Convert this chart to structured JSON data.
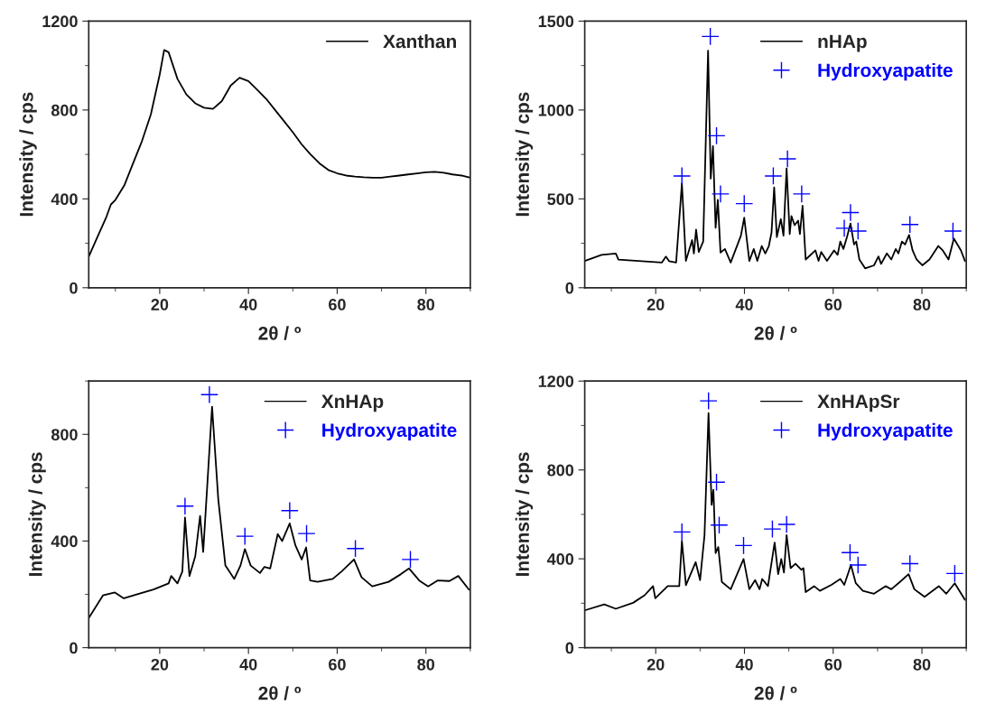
{
  "chart_data": [
    {
      "type": "line",
      "xlabel": "2θ / º",
      "ylabel": "Intensity / cps",
      "xlim": [
        4,
        90
      ],
      "xticks": [
        20,
        40,
        60,
        80
      ],
      "ylim": [
        0,
        1200
      ],
      "yticks": [
        0,
        400,
        800,
        1200
      ],
      "legend": "top right",
      "series": [
        {
          "name": "Xanthan",
          "color": "#000000",
          "x": [
            4,
            6,
            8,
            9,
            10,
            12,
            14,
            16,
            18,
            20,
            21,
            22,
            24,
            26,
            28,
            30,
            32,
            34,
            36,
            38,
            40,
            42,
            44,
            46,
            48,
            50,
            52,
            54,
            56,
            58,
            60,
            62,
            64,
            66,
            68,
            70,
            72,
            74,
            76,
            78,
            80,
            82,
            84,
            86,
            88,
            90
          ],
          "values": [
            140,
            230,
            320,
            375,
            395,
            460,
            560,
            660,
            780,
            960,
            1070,
            1060,
            940,
            870,
            830,
            810,
            805,
            840,
            910,
            945,
            930,
            890,
            850,
            800,
            750,
            700,
            645,
            600,
            560,
            530,
            515,
            505,
            500,
            497,
            495,
            495,
            500,
            505,
            510,
            515,
            520,
            522,
            518,
            510,
            505,
            495
          ]
        }
      ]
    },
    {
      "type": "line",
      "xlabel": "2θ / º",
      "ylabel": "Intensity / cps",
      "xlim": [
        4,
        90
      ],
      "xticks": [
        20,
        40,
        60,
        80
      ],
      "ylim": [
        0,
        1500
      ],
      "yticks": [
        0,
        500,
        1000,
        1500
      ],
      "legend": "top right",
      "series": [
        {
          "name": "nHAp",
          "color": "#000000",
          "x": [
            4,
            7.8,
            11,
            11.6,
            21.4,
            22.3,
            23,
            24.6,
            25.9,
            26.8,
            28.2,
            28.6,
            29.1,
            29.7,
            30.7,
            31.8,
            32.4,
            32.9,
            33.5,
            34.0,
            34.6,
            35.6,
            36.9,
            39.2,
            39.95,
            41.1,
            42.1,
            42.9,
            43.9,
            44.7,
            45.5,
            46.1,
            46.7,
            47.3,
            48.2,
            48.8,
            49.5,
            50.2,
            50.6,
            51.3,
            52.1,
            52.5,
            53.1,
            53.8,
            56.0,
            56.7,
            57.3,
            58.6,
            60.2,
            61.0,
            61.6,
            62.3,
            63.1,
            63.9,
            64.7,
            65.2,
            65.9,
            67.2,
            69.2,
            70.2,
            70.8,
            72.1,
            73.1,
            74.1,
            74.7,
            75.5,
            76.2,
            77.1,
            77.9,
            78.8,
            80.1,
            81.7,
            83.7,
            84.7,
            86.0,
            87.2,
            88.8,
            89.7
          ],
          "values": [
            151,
            185,
            193,
            158,
            142,
            175,
            150,
            142,
            587,
            151,
            268,
            193,
            327,
            201,
            260,
            1334,
            614,
            797,
            337,
            495,
            198,
            218,
            142,
            293,
            394,
            151,
            218,
            151,
            235,
            193,
            235,
            310,
            565,
            285,
            386,
            293,
            671,
            302,
            403,
            352,
            377,
            302,
            461,
            159,
            210,
            151,
            201,
            151,
            210,
            185,
            260,
            218,
            285,
            361,
            243,
            260,
            159,
            109,
            126,
            176,
            134,
            193,
            159,
            218,
            193,
            260,
            243,
            297,
            210,
            159,
            126,
            159,
            235,
            210,
            159,
            277,
            210,
            151
          ]
        },
        {
          "name": "Hydroxyapatite",
          "type": "scatter",
          "marker": "cross",
          "color": "#0000ff",
          "x": [
            25.9,
            32.3,
            33.7,
            34.6,
            39.95,
            46.5,
            49.7,
            52.9,
            62.5,
            63.9,
            65.6,
            77.3,
            87.0
          ],
          "values": [
            629,
            1414,
            855,
            528,
            473,
            629,
            725,
            528,
            335,
            423,
            319,
            356,
            319
          ]
        }
      ]
    },
    {
      "type": "line",
      "xlabel": "2θ / º",
      "ylabel": "Intensity / cps",
      "xlim": [
        4,
        90
      ],
      "xticks": [
        20,
        40,
        60,
        80
      ],
      "ylim": [
        0,
        1000
      ],
      "yticks": [
        0,
        400,
        800
      ],
      "legend": "top right",
      "series": [
        {
          "name": "XnHAp",
          "color": "#000000",
          "x": [
            4,
            7.2,
            9.9,
            11.9,
            15.3,
            18.6,
            22.0,
            22.6,
            24.0,
            25.1,
            25.7,
            26.7,
            28.0,
            29.1,
            29.8,
            31.8,
            33.2,
            34.8,
            36.8,
            38.2,
            39.2,
            40.5,
            42.6,
            43.6,
            44.9,
            46.6,
            47.6,
            49.3,
            50.6,
            52.0,
            53.0,
            53.9,
            55.6,
            59.0,
            61.0,
            63.8,
            65.5,
            67.9,
            71.6,
            74.3,
            76.2,
            78.5,
            80.5,
            82.6,
            85.3,
            87.3,
            89.7
          ],
          "values": [
            111,
            196,
            207,
            185,
            202,
            218,
            241,
            269,
            241,
            286,
            488,
            269,
            342,
            494,
            359,
            904,
            556,
            308,
            258,
            308,
            370,
            308,
            280,
            303,
            297,
            426,
            400,
            466,
            383,
            331,
            376,
            252,
            247,
            258,
            286,
            331,
            264,
            230,
            247,
            275,
            297,
            252,
            230,
            252,
            250,
            269,
            218
          ]
        },
        {
          "name": "Hydroxyapatite",
          "type": "scatter",
          "marker": "cross",
          "color": "#0000ff",
          "x": [
            25.7,
            31.2,
            39.2,
            49.3,
            53.1,
            64.1,
            76.5
          ],
          "values": [
            531,
            949,
            418,
            514,
            428,
            372,
            331
          ]
        }
      ]
    },
    {
      "type": "line",
      "xlabel": "2θ / º",
      "ylabel": "Intensity / cps",
      "xlim": [
        4,
        90
      ],
      "xticks": [
        20,
        40,
        60,
        80
      ],
      "ylim": [
        0,
        1200
      ],
      "yticks": [
        0,
        400,
        800,
        1200
      ],
      "legend": "top right",
      "series": [
        {
          "name": "XnHApSr",
          "color": "#000000",
          "x": [
            4,
            8.4,
            11.0,
            14.9,
            17.5,
            19.4,
            19.9,
            22.7,
            25.3,
            25.9,
            26.8,
            29.0,
            30.0,
            31.0,
            31.9,
            32.6,
            33.0,
            33.5,
            34.1,
            34.9,
            36.9,
            39.8,
            41.1,
            42.4,
            43.4,
            44.0,
            45.3,
            46.8,
            47.6,
            48.3,
            48.9,
            49.5,
            50.4,
            51.5,
            52.8,
            53.3,
            53.8,
            55.7,
            57.0,
            59.6,
            61.6,
            62.5,
            64.0,
            65.1,
            66.7,
            69.2,
            71.8,
            73.1,
            75.1,
            77.0,
            78.3,
            80.6,
            83.8,
            85.5,
            87.4,
            89.7
          ],
          "values": [
            168,
            195,
            175,
            202,
            236,
            277,
            222,
            277,
            277,
            480,
            281,
            385,
            304,
            507,
            1056,
            643,
            711,
            426,
            453,
            296,
            263,
            399,
            263,
            304,
            263,
            309,
            277,
            473,
            331,
            399,
            338,
            507,
            358,
            378,
            351,
            358,
            250,
            277,
            256,
            283,
            309,
            283,
            372,
            290,
            256,
            243,
            277,
            263,
            297,
            331,
            263,
            229,
            277,
            243,
            290,
            216
          ]
        },
        {
          "name": "Hydroxyapatite",
          "type": "scatter",
          "marker": "cross",
          "color": "#0000ff",
          "x": [
            25.9,
            31.9,
            33.7,
            34.3,
            39.8,
            46.3,
            49.5,
            63.8,
            65.6,
            77.3,
            87.4
          ],
          "values": [
            521,
            1111,
            745,
            552,
            460,
            534,
            555,
            428,
            372,
            378,
            334
          ]
        }
      ]
    }
  ]
}
